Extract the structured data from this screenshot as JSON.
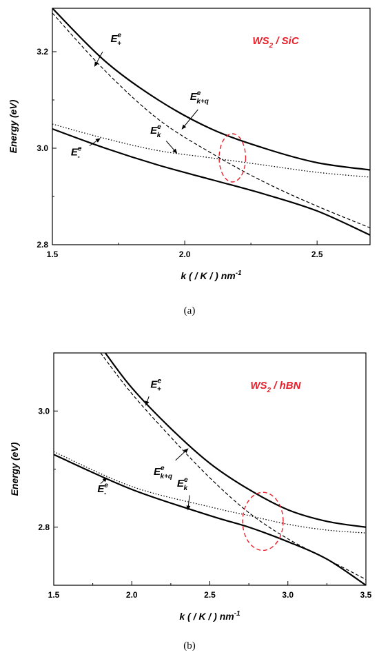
{
  "colors": {
    "title": "#e8202a",
    "ellipse": "#e8202a",
    "curve": "#000000"
  },
  "chart_data": [
    {
      "type": "line",
      "caption": "(a)",
      "title_main": "WS",
      "title_sub": "2",
      "title_rest": " / SiC",
      "xlabel_main": "k ( / K / ) nm",
      "xlabel_sup": "-1",
      "ylabel": "Energy (eV)",
      "xlim": [
        1.5,
        2.7
      ],
      "ylim": [
        2.8,
        3.29
      ],
      "xticks": [
        1.5,
        2.0,
        2.5
      ],
      "xtick_labels": [
        "1.5",
        "2.0",
        "2.5"
      ],
      "yticks": [
        2.8,
        3.0,
        3.2
      ],
      "ytick_labels": [
        "2.8",
        "3.0",
        "3.2"
      ],
      "grid": false,
      "series": [
        {
          "style": "solid",
          "x": [
            1.5,
            1.7,
            1.9,
            2.1,
            2.3,
            2.5,
            2.7
          ],
          "y": [
            3.29,
            3.18,
            3.1,
            3.04,
            3.0,
            2.97,
            2.955
          ]
        },
        {
          "style": "dashed",
          "x": [
            1.5,
            1.7,
            1.9,
            2.1,
            2.3,
            2.5,
            2.7
          ],
          "y": [
            3.28,
            3.16,
            3.06,
            2.99,
            2.93,
            2.88,
            2.835
          ]
        },
        {
          "style": "dotted",
          "x": [
            1.5,
            1.7,
            1.9,
            2.1,
            2.3,
            2.5,
            2.7
          ],
          "y": [
            3.05,
            3.02,
            2.995,
            2.98,
            2.965,
            2.95,
            2.94
          ]
        },
        {
          "style": "solid",
          "x": [
            1.5,
            1.7,
            1.9,
            2.1,
            2.3,
            2.5,
            2.7
          ],
          "y": [
            3.04,
            3.0,
            2.965,
            2.935,
            2.905,
            2.87,
            2.82
          ]
        }
      ],
      "annotations": [
        {
          "id": "eplus",
          "base": "E",
          "sup": "e",
          "sub": "+",
          "tx": 1.72,
          "ty": 3.22,
          "ax": 1.69,
          "ay": 3.2,
          "hx": 1.66,
          "hy": 3.17
        },
        {
          "id": "ekq",
          "base": "E",
          "sup": "e",
          "sub": "k+q",
          "tx": 2.02,
          "ty": 3.1,
          "ax": 2.05,
          "ay": 3.08,
          "hx": 1.99,
          "hy": 3.04
        },
        {
          "id": "ek",
          "base": "E",
          "sup": "e",
          "sub": "k",
          "tx": 1.87,
          "ty": 3.03,
          "ax": 1.93,
          "ay": 3.015,
          "hx": 1.97,
          "hy": 2.99
        },
        {
          "id": "eminus",
          "base": "E",
          "sup": "e",
          "sub": "-",
          "tx": 1.57,
          "ty": 2.985,
          "ax": 1.64,
          "ay": 3.005,
          "hx": 1.68,
          "hy": 3.02
        }
      ],
      "ellipse": {
        "cx": 2.18,
        "cy": 2.98,
        "rx": 0.05,
        "ry": 0.05
      }
    },
    {
      "type": "line",
      "caption": "(b)",
      "title_main": "WS",
      "title_sub": "2",
      "title_rest": " / hBN",
      "xlabel_main": "k ( / K / ) nm",
      "xlabel_sup": "-1",
      "ylabel": "Energy (eV)",
      "xlim": [
        1.5,
        3.5
      ],
      "ylim": [
        2.7,
        3.1
      ],
      "xticks": [
        1.5,
        2.0,
        2.5,
        3.0,
        3.5
      ],
      "xtick_labels": [
        "1.5",
        "2.0",
        "2.5",
        "3.0",
        "3.5"
      ],
      "yticks": [
        2.8,
        3.0
      ],
      "ytick_labels": [
        "2.8",
        "3.0"
      ],
      "grid": false,
      "series": [
        {
          "style": "solid",
          "x": [
            1.83,
            2.0,
            2.25,
            2.5,
            2.75,
            3.0,
            3.25,
            3.5
          ],
          "y": [
            3.1,
            3.04,
            2.97,
            2.91,
            2.865,
            2.83,
            2.81,
            2.8
          ]
        },
        {
          "style": "dashed",
          "x": [
            1.8,
            2.0,
            2.25,
            2.5,
            2.75,
            3.0,
            3.25,
            3.5
          ],
          "y": [
            3.1,
            3.03,
            2.955,
            2.885,
            2.825,
            2.78,
            2.745,
            2.71
          ]
        },
        {
          "style": "dotted",
          "x": [
            1.5,
            2.0,
            2.5,
            2.75,
            3.0,
            3.25,
            3.5
          ],
          "y": [
            2.93,
            2.87,
            2.835,
            2.82,
            2.805,
            2.795,
            2.79
          ]
        },
        {
          "style": "solid",
          "x": [
            1.5,
            2.0,
            2.5,
            2.75,
            3.0,
            3.25,
            3.5
          ],
          "y": [
            2.925,
            2.865,
            2.82,
            2.8,
            2.775,
            2.745,
            2.7
          ]
        }
      ],
      "annotations": [
        {
          "id": "eplus",
          "base": "E",
          "sup": "e",
          "sub": "+",
          "tx": 2.12,
          "ty": 3.04,
          "ax": 2.11,
          "ay": 3.025,
          "hx": 2.09,
          "hy": 3.01
        },
        {
          "id": "ekq",
          "base": "E",
          "sup": "e",
          "sub": "k+q",
          "tx": 2.14,
          "ty": 2.89,
          "ax": 2.28,
          "ay": 2.915,
          "hx": 2.36,
          "hy": 2.935
        },
        {
          "id": "ek",
          "base": "E",
          "sup": "e",
          "sub": "k",
          "tx": 2.29,
          "ty": 2.87,
          "ax": 2.37,
          "ay": 2.855,
          "hx": 2.36,
          "hy": 2.83
        },
        {
          "id": "eminus",
          "base": "E",
          "sup": "e",
          "sub": "-",
          "tx": 1.78,
          "ty": 2.86,
          "ax": 1.8,
          "ay": 2.875,
          "hx": 1.84,
          "hy": 2.885
        }
      ],
      "ellipse": {
        "cx": 2.84,
        "cy": 2.81,
        "rx": 0.13,
        "ry": 0.05
      }
    }
  ]
}
